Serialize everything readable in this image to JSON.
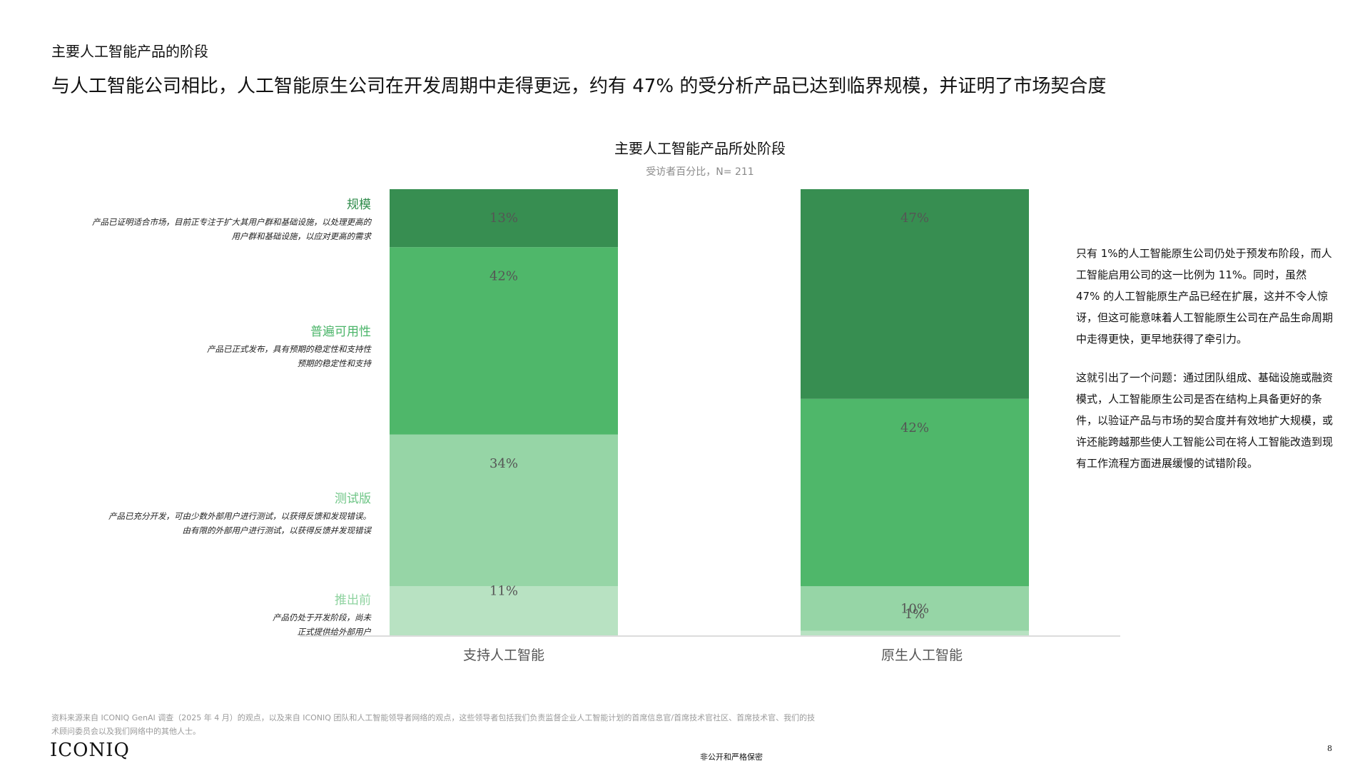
{
  "header": {
    "section_label": "主要人工智能产品的阶段",
    "headline": "与人工智能公司相比，人工智能原生公司在开发周期中走得更远，约有 47% 的受分析产品已达到临界规模，并证明了市场契合度"
  },
  "stages": {
    "scale": {
      "name": "规模",
      "desc_line1": "产品已证明适合市场，目前正专注于扩大其用户群和基础设施，以处理更高的",
      "desc_line2": "用户群和基础设施，以应对更高的需求"
    },
    "ga": {
      "name": "普遍可用性",
      "desc_line1": "产品已正式发布，具有预期的稳定性和支持性",
      "desc_line2": "预期的稳定性和支持"
    },
    "beta": {
      "name": "测试版",
      "desc_line1": "产品已充分开发，可由少数外部用户进行测试，以获得反馈和发现错误。",
      "desc_line2": "由有限的外部用户进行测试，以获得反馈并发现错误"
    },
    "prelaunch": {
      "name": "推出前",
      "desc_line1": "产品仍处于开发阶段，尚未",
      "desc_line2": "正式提供给外部用户"
    }
  },
  "chart_data": {
    "type": "bar",
    "stacked": true,
    "title": "主要人工智能产品所处阶段",
    "subtitle": "受访者百分比，N= 211",
    "categories": [
      "支持人工智能",
      "原生人工智能"
    ],
    "series": [
      {
        "name": "推出前",
        "values": [
          11,
          1
        ],
        "labels": [
          "11%",
          "1%"
        ],
        "color": "#b8e2c2"
      },
      {
        "name": "测试版",
        "values": [
          34,
          10
        ],
        "labels": [
          "34%",
          "10%"
        ],
        "color": "#96d5a6"
      },
      {
        "name": "普遍可用性",
        "values": [
          42,
          42
        ],
        "labels": [
          "42%",
          "42%"
        ],
        "color": "#4fb76a"
      },
      {
        "name": "规模",
        "values": [
          13,
          47
        ],
        "labels": [
          "13%",
          "47%"
        ],
        "color": "#378e51"
      }
    ],
    "ylim": [
      0,
      100
    ],
    "grid": false
  },
  "commentary": {
    "paragraph1": "只有 1%的人工智能原生公司仍处于预发布阶段，而人工智能启用公司的这一比例为 11%。同时，虽然 47% 的人工智能原生产品已经在扩展，这并不令人惊讶，但这可能意味着人工智能原生公司在产品生命周期中走得更快，更早地获得了牵引力。",
    "paragraph2": "这就引出了一个问题：通过团队组成、基础设施或融资模式，人工智能原生公司是否在结构上具备更好的条件，以验证产品与市场的契合度并有效地扩大规模，或许还能跨越那些使人工智能公司在将人工智能改造到现有工作流程方面进展缓慢的试错阶段。"
  },
  "footer": {
    "source_note": "资料来源来自 ICONIQ GenAI 调查（2025 年 4 月）的观点，以及来自 ICONIQ 团队和人工智能领导者网络的观点，这些领导者包括我们负责监督企业人工智能计划的首席信息官/首席技术官社区、首席技术官、我们的技术顾问委员会以及我们网络中的其他人士。",
    "brand": "ICONIQ",
    "confidential": "非公开和严格保密",
    "page_number": "8"
  }
}
